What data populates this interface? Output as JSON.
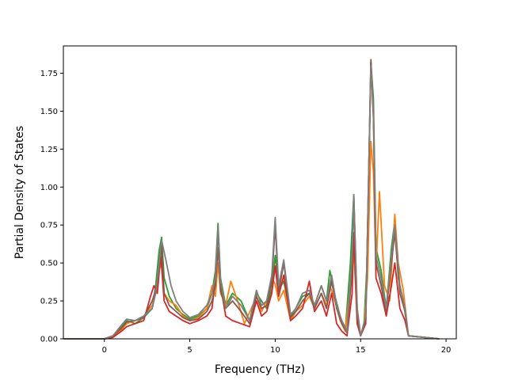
{
  "chart_data": {
    "type": "line",
    "xlabel": "Frequency (THz)",
    "ylabel": "Partial Density of States",
    "xlim": [
      -2.4,
      20.6
    ],
    "ylim": [
      0,
      1.93
    ],
    "xticks": [
      0,
      5,
      10,
      15,
      20
    ],
    "yticks": [
      0.0,
      0.25,
      0.5,
      0.75,
      1.0,
      1.25,
      1.5,
      1.75
    ],
    "xtick_labels": [
      "0",
      "5",
      "10",
      "15",
      "20"
    ],
    "ytick_labels": [
      "0.00",
      "0.25",
      "0.50",
      "0.75",
      "1.00",
      "1.25",
      "1.50",
      "1.75"
    ],
    "grid": false,
    "series": [
      {
        "color": "#2ca02c",
        "x": [
          -2.4,
          0.0,
          0.5,
          1.0,
          1.3,
          1.8,
          2.3,
          2.8,
          3.0,
          3.2,
          3.35,
          3.5,
          3.8,
          4.2,
          4.6,
          5.0,
          5.5,
          6.0,
          6.3,
          6.5,
          6.65,
          6.8,
          7.1,
          7.5,
          8.0,
          8.5,
          8.9,
          9.2,
          9.5,
          9.8,
          10.0,
          10.2,
          10.5,
          10.9,
          11.2,
          11.6,
          12.0,
          12.3,
          12.7,
          13.0,
          13.2,
          13.5,
          13.8,
          14.1,
          14.4,
          14.6,
          14.8,
          15.0,
          15.2,
          15.4,
          15.6,
          15.75,
          15.9,
          16.2,
          16.5,
          16.8,
          17.0,
          17.2,
          17.5,
          17.8,
          19.6
        ],
        "y": [
          0,
          0,
          0.02,
          0.08,
          0.12,
          0.1,
          0.14,
          0.2,
          0.35,
          0.58,
          0.67,
          0.4,
          0.28,
          0.2,
          0.16,
          0.13,
          0.15,
          0.2,
          0.3,
          0.45,
          0.76,
          0.4,
          0.22,
          0.3,
          0.25,
          0.12,
          0.3,
          0.25,
          0.2,
          0.33,
          0.55,
          0.32,
          0.38,
          0.15,
          0.2,
          0.28,
          0.3,
          0.22,
          0.35,
          0.25,
          0.45,
          0.28,
          0.15,
          0.05,
          0.5,
          0.95,
          0.2,
          0.02,
          0.1,
          0.55,
          1.82,
          1.58,
          0.6,
          0.45,
          0.2,
          0.6,
          0.78,
          0.4,
          0.25,
          0.02,
          0
        ]
      },
      {
        "color": "#ff7f0e",
        "x": [
          -2.4,
          0.0,
          0.5,
          1.0,
          1.3,
          1.8,
          2.3,
          2.8,
          3.0,
          3.2,
          3.35,
          3.5,
          3.8,
          4.2,
          4.6,
          5.0,
          5.5,
          6.0,
          6.3,
          6.5,
          6.65,
          6.8,
          7.1,
          7.4,
          7.8,
          8.2,
          8.6,
          8.9,
          9.2,
          9.5,
          9.8,
          10.0,
          10.2,
          10.5,
          10.9,
          11.2,
          11.6,
          12.0,
          12.3,
          12.7,
          13.0,
          13.2,
          13.5,
          13.8,
          14.1,
          14.4,
          14.6,
          14.8,
          15.0,
          15.2,
          15.4,
          15.6,
          15.75,
          15.9,
          16.1,
          16.4,
          16.7,
          17.0,
          17.2,
          17.5,
          17.8,
          19.6
        ],
        "y": [
          0,
          0,
          0.01,
          0.06,
          0.1,
          0.12,
          0.15,
          0.22,
          0.3,
          0.45,
          0.5,
          0.3,
          0.25,
          0.22,
          0.15,
          0.12,
          0.14,
          0.2,
          0.35,
          0.28,
          0.5,
          0.3,
          0.22,
          0.38,
          0.25,
          0.1,
          0.2,
          0.28,
          0.18,
          0.25,
          0.4,
          0.36,
          0.25,
          0.32,
          0.12,
          0.18,
          0.22,
          0.28,
          0.2,
          0.3,
          0.22,
          0.35,
          0.25,
          0.12,
          0.05,
          0.35,
          0.6,
          0.1,
          0.02,
          0.08,
          0.4,
          1.3,
          1.1,
          0.45,
          0.97,
          0.35,
          0.25,
          0.82,
          0.5,
          0.32,
          0.02,
          0
        ]
      },
      {
        "color": "#d62728",
        "x": [
          -2.4,
          0.0,
          0.5,
          1.0,
          1.3,
          1.8,
          2.3,
          2.7,
          2.9,
          3.1,
          3.3,
          3.5,
          3.8,
          4.2,
          4.6,
          5.0,
          5.5,
          6.0,
          6.3,
          6.5,
          6.65,
          6.8,
          7.1,
          7.5,
          8.0,
          8.5,
          8.9,
          9.2,
          9.5,
          9.8,
          10.0,
          10.2,
          10.5,
          10.9,
          11.2,
          11.6,
          12.0,
          12.3,
          12.7,
          13.0,
          13.3,
          13.6,
          13.9,
          14.2,
          14.5,
          14.6,
          14.8,
          15.0,
          15.3,
          15.6,
          15.75,
          15.9,
          16.2,
          16.5,
          16.8,
          17.0,
          17.3,
          17.6,
          17.8,
          19.6
        ],
        "y": [
          0,
          0,
          0.01,
          0.05,
          0.08,
          0.1,
          0.12,
          0.28,
          0.35,
          0.3,
          0.55,
          0.25,
          0.18,
          0.15,
          0.12,
          0.1,
          0.12,
          0.15,
          0.2,
          0.4,
          0.72,
          0.35,
          0.15,
          0.12,
          0.1,
          0.08,
          0.25,
          0.15,
          0.18,
          0.3,
          0.48,
          0.28,
          0.42,
          0.12,
          0.15,
          0.2,
          0.38,
          0.18,
          0.25,
          0.15,
          0.3,
          0.1,
          0.05,
          0.02,
          0.3,
          0.7,
          0.1,
          0.02,
          0.1,
          1.82,
          1.45,
          0.4,
          0.3,
          0.15,
          0.35,
          0.5,
          0.2,
          0.12,
          0.02,
          0
        ]
      },
      {
        "color": "#8c564b",
        "x": [
          -2.4,
          0.0,
          0.5,
          1.0,
          1.3,
          1.8,
          2.3,
          2.8,
          3.0,
          3.2,
          3.35,
          3.5,
          3.8,
          4.2,
          4.6,
          5.0,
          5.5,
          6.0,
          6.3,
          6.5,
          6.65,
          6.8,
          7.1,
          7.5,
          8.0,
          8.5,
          8.9,
          9.2,
          9.5,
          9.8,
          10.0,
          10.2,
          10.5,
          10.9,
          11.2,
          11.6,
          12.0,
          12.3,
          12.7,
          13.0,
          13.3,
          13.6,
          13.9,
          14.2,
          14.5,
          14.6,
          14.8,
          15.0,
          15.3,
          15.6,
          15.75,
          15.9,
          16.2,
          16.5,
          16.8,
          17.0,
          17.3,
          17.6,
          17.8,
          19.6
        ],
        "y": [
          0,
          0,
          0.02,
          0.07,
          0.11,
          0.12,
          0.14,
          0.25,
          0.32,
          0.45,
          0.62,
          0.3,
          0.22,
          0.18,
          0.14,
          0.12,
          0.13,
          0.18,
          0.25,
          0.35,
          0.6,
          0.32,
          0.2,
          0.25,
          0.18,
          0.1,
          0.28,
          0.2,
          0.22,
          0.38,
          0.75,
          0.3,
          0.5,
          0.14,
          0.18,
          0.25,
          0.3,
          0.2,
          0.3,
          0.2,
          0.38,
          0.2,
          0.1,
          0.04,
          0.45,
          0.93,
          0.15,
          0.02,
          0.12,
          1.84,
          1.5,
          0.5,
          0.35,
          0.18,
          0.5,
          0.7,
          0.3,
          0.18,
          0.02,
          0
        ]
      },
      {
        "color": "#7f7f7f",
        "x": [
          -2.4,
          0.0,
          0.5,
          1.0,
          1.3,
          1.8,
          2.3,
          2.8,
          3.0,
          3.2,
          3.35,
          3.6,
          3.9,
          4.2,
          4.6,
          5.0,
          5.5,
          6.0,
          6.3,
          6.5,
          6.65,
          6.8,
          7.1,
          7.5,
          8.0,
          8.5,
          8.9,
          9.2,
          9.5,
          9.8,
          10.0,
          10.2,
          10.5,
          10.9,
          11.2,
          11.6,
          12.0,
          12.3,
          12.7,
          13.0,
          13.3,
          13.6,
          13.9,
          14.2,
          14.5,
          14.6,
          14.8,
          15.0,
          15.3,
          15.6,
          15.75,
          15.9,
          16.2,
          16.5,
          16.8,
          17.0,
          17.3,
          17.6,
          17.8,
          19.6
        ],
        "y": [
          0,
          0,
          0.02,
          0.09,
          0.13,
          0.12,
          0.15,
          0.2,
          0.3,
          0.5,
          0.65,
          0.52,
          0.35,
          0.25,
          0.18,
          0.14,
          0.16,
          0.22,
          0.3,
          0.4,
          0.74,
          0.38,
          0.2,
          0.28,
          0.22,
          0.12,
          0.32,
          0.22,
          0.25,
          0.42,
          0.8,
          0.35,
          0.52,
          0.16,
          0.2,
          0.3,
          0.32,
          0.22,
          0.35,
          0.25,
          0.42,
          0.22,
          0.12,
          0.05,
          0.55,
          0.95,
          0.2,
          0.02,
          0.15,
          1.8,
          1.5,
          0.55,
          0.4,
          0.2,
          0.55,
          0.75,
          0.35,
          0.2,
          0.02,
          0
        ]
      }
    ]
  }
}
